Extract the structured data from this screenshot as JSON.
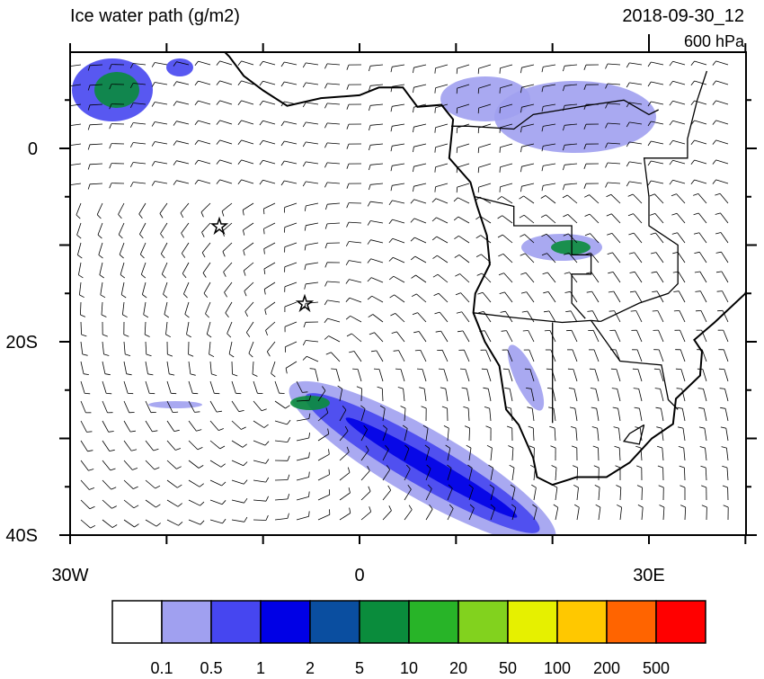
{
  "map": {
    "title": "Ice water path (g/m2)",
    "date": "2018-09-30_12",
    "level": "600 hPa",
    "lat_labels": [
      "0",
      "20S",
      "40S"
    ],
    "lon_labels": [
      "30W",
      "0",
      "30E"
    ],
    "colorbar": {
      "colors": [
        "#ffffff",
        "#a0a0f0",
        "#4646f0",
        "#0000e6",
        "#0a4ea0",
        "#0a8c3c",
        "#28b428",
        "#82d21e",
        "#e6f000",
        "#ffc800",
        "#ff6400",
        "#ff0000"
      ],
      "labels": [
        "0.1",
        "0.5",
        "1",
        "2",
        "5",
        "10",
        "20",
        "50",
        "100",
        "200",
        "500"
      ]
    }
  }
}
